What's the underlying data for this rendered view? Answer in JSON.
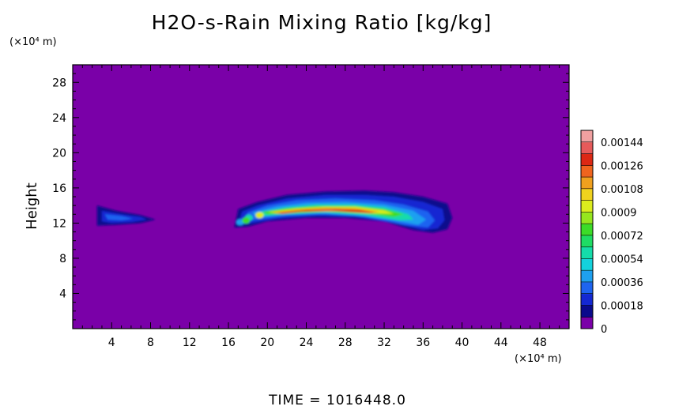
{
  "chart_data": {
    "type": "heatmap",
    "title": "H2O-s-Rain Mixing Ratio [kg/kg]",
    "ylabel": "Height",
    "y_unit": "(×10⁴ m)",
    "x_unit": "(×10⁴ m)",
    "xlim": [
      0,
      51
    ],
    "ylim": [
      0,
      30
    ],
    "x_ticks": [
      4,
      8,
      12,
      16,
      20,
      24,
      28,
      32,
      36,
      40,
      44,
      48
    ],
    "y_ticks": [
      4,
      8,
      12,
      16,
      20,
      24,
      28
    ],
    "colorbar": {
      "labels": [
        "0.00144",
        "0.00126",
        "0.00108",
        "0.0009",
        "0.00072",
        "0.00054",
        "0.00036",
        "0.00018",
        "0"
      ],
      "levels": [
        0,
        9e-05,
        0.00018,
        0.00027,
        0.00036,
        0.00045,
        0.00054,
        0.00063,
        0.00072,
        0.00081,
        0.0009,
        0.00099,
        0.00108,
        0.00117,
        0.00126,
        0.00135,
        0.00144,
        0.00153
      ],
      "colors": [
        "#7a00a8",
        "#0a0a8c",
        "#1428d2",
        "#1e64f0",
        "#1ea0f0",
        "#14d2dc",
        "#14dcaa",
        "#1edc64",
        "#3cdc28",
        "#96e61e",
        "#dcec1e",
        "#f0d21e",
        "#f0a01e",
        "#f0641e",
        "#dc2814",
        "#e65a5a",
        "#f0a0a0"
      ]
    },
    "features": [
      {
        "x_range": [
          2.5,
          8.5
        ],
        "y_range": [
          11.7,
          14.0
        ],
        "max": 0.0003
      },
      {
        "x_range": [
          16.5,
          39
        ],
        "y_range": [
          11.0,
          15.8
        ],
        "max": 0.00135,
        "peak_x": 27,
        "peak_y": 13.5
      }
    ],
    "background_value": 0,
    "background_color": "#7a00a8"
  },
  "footer": {
    "time_label": "TIME = 1016448.0"
  }
}
